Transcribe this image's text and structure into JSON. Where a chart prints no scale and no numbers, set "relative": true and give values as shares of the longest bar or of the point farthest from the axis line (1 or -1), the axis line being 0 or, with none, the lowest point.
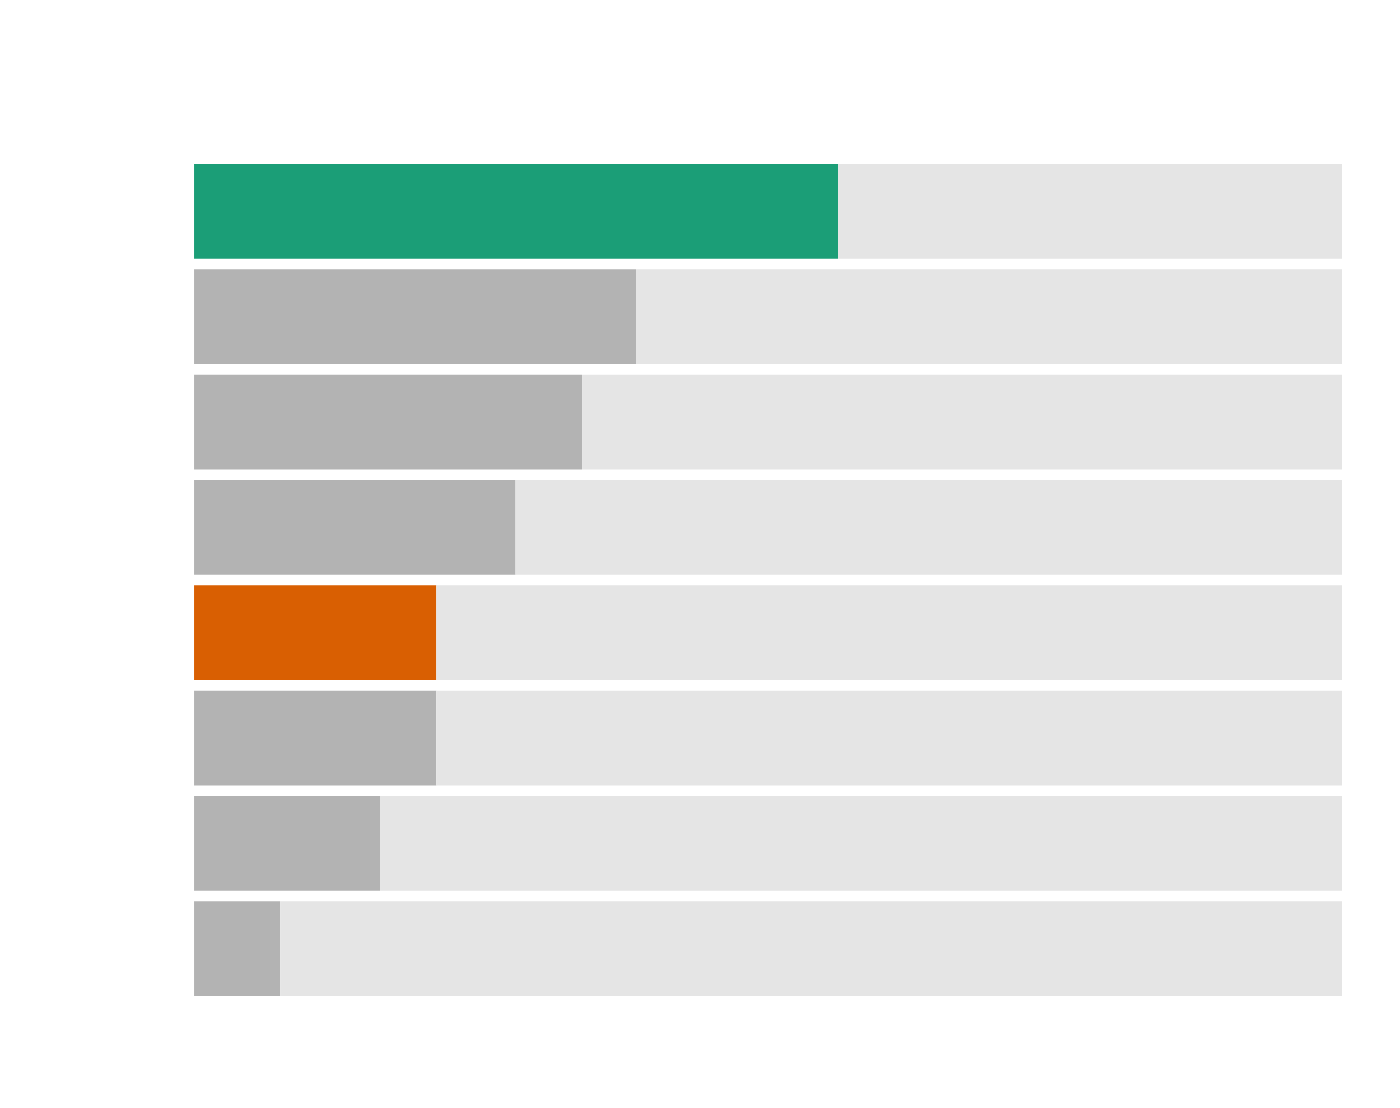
{
  "chart_data": {
    "type": "bar",
    "orientation": "horizontal",
    "relative": true,
    "stacked": true,
    "categories": [
      null,
      null,
      null,
      null,
      null,
      null,
      null,
      null
    ],
    "series": [
      {
        "colors": [
          "#1b9e77",
          "#b3b3b3",
          "#b3b3b3",
          "#b3b3b3",
          "#d95f02",
          "#b3b3b3",
          "#b3b3b3",
          "#b3b3b3"
        ],
        "values": [
          0.561,
          0.385,
          0.338,
          0.28,
          0.211,
          0.211,
          0.162,
          0.075
        ]
      },
      {
        "color": "#e5e5e5",
        "values": [
          0.439,
          0.615,
          0.662,
          0.72,
          0.789,
          0.789,
          0.838,
          0.925
        ]
      }
    ],
    "grid": false
  }
}
